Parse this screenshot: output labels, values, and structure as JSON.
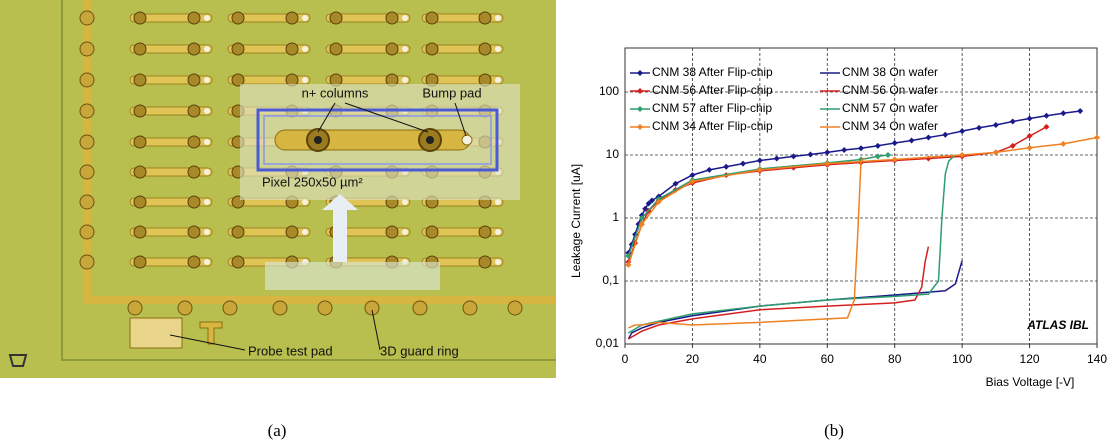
{
  "panel_a": {
    "labels": {
      "n_columns": "n+ columns",
      "bump_pad": "Bump pad",
      "pixel": "Pixel 250x50 µm²",
      "probe": "Probe test pad",
      "guard": "3D guard ring"
    }
  },
  "captions": [
    "(a)",
    "(b)"
  ],
  "chart_data": {
    "type": "line",
    "x_label": "Bias Voltage [-V]",
    "y_label": "Leakage Current [uA]",
    "annotation": "ATLAS IBL",
    "xlim": [
      0,
      140
    ],
    "xticks": [
      0,
      20,
      40,
      60,
      80,
      100,
      120,
      140
    ],
    "ylim": [
      0.01,
      500
    ],
    "y_log": true,
    "grid": true,
    "yticks": [
      {
        "value": 0.01,
        "label": "0,01"
      },
      {
        "value": 0.1,
        "label": "0,1"
      },
      1,
      10,
      100
    ],
    "series": [
      {
        "name": "CNM 38 After Flip-chip",
        "color": "#1a1a8c",
        "marker": true,
        "x": [
          1,
          2,
          3,
          4,
          5,
          6,
          7,
          8,
          10,
          15,
          20,
          25,
          30,
          35,
          40,
          45,
          50,
          55,
          60,
          65,
          70,
          75,
          80,
          85,
          90,
          95,
          100,
          105,
          110,
          115,
          120,
          125,
          130,
          135
        ],
        "values": [
          0.28,
          0.38,
          0.55,
          0.8,
          1.1,
          1.4,
          1.7,
          1.9,
          2.2,
          3.5,
          4.8,
          5.8,
          6.5,
          7.3,
          8.2,
          8.8,
          9.5,
          10.2,
          11,
          12,
          12.8,
          14,
          15.5,
          17,
          19,
          21,
          24,
          27,
          30,
          34,
          38,
          42,
          46,
          50
        ]
      },
      {
        "name": "CNM 38 On wafer",
        "color": "#1a1a8c",
        "marker": false,
        "x": [
          1,
          2,
          5,
          10,
          20,
          40,
          60,
          80,
          95,
          98,
          100
        ],
        "values": [
          0.012,
          0.015,
          0.018,
          0.022,
          0.028,
          0.04,
          0.05,
          0.06,
          0.07,
          0.09,
          0.21
        ]
      },
      {
        "name": "CNM 56 After Flip-chip",
        "color": "#d62020",
        "marker": true,
        "x": [
          1,
          3,
          5,
          7,
          10,
          15,
          20,
          30,
          40,
          50,
          60,
          70,
          80,
          90,
          100,
          110,
          115,
          120,
          125
        ],
        "values": [
          0.2,
          0.4,
          0.8,
          1.3,
          1.9,
          2.8,
          3.6,
          4.8,
          5.6,
          6.3,
          7,
          7.6,
          8.2,
          8.8,
          9.5,
          11,
          14,
          20,
          28
        ]
      },
      {
        "name": "CNM 56 On wafer",
        "color": "#d62020",
        "marker": false,
        "x": [
          1,
          5,
          10,
          20,
          40,
          60,
          80,
          86,
          88,
          89,
          90
        ],
        "values": [
          0.012,
          0.016,
          0.02,
          0.025,
          0.035,
          0.04,
          0.045,
          0.05,
          0.08,
          0.2,
          0.35
        ]
      },
      {
        "name": "CNM 57 after Flip-chip",
        "color": "#2e9e6e",
        "marker": true,
        "x": [
          1,
          5,
          10,
          20,
          40,
          60,
          70,
          75,
          78
        ],
        "values": [
          0.25,
          1.0,
          2.0,
          4,
          6,
          7.5,
          8.5,
          9.5,
          10
        ]
      },
      {
        "name": "CNM 57 On wafer",
        "color": "#2e9e6e",
        "marker": false,
        "x": [
          1,
          5,
          10,
          20,
          40,
          60,
          80,
          90,
          93,
          94,
          95,
          96,
          97,
          98
        ],
        "values": [
          0.015,
          0.02,
          0.023,
          0.03,
          0.04,
          0.05,
          0.057,
          0.062,
          0.1,
          1,
          5,
          8,
          9,
          10
        ]
      },
      {
        "name": "CNM 34 After Flip-chip",
        "color": "#f08020",
        "marker": true,
        "x": [
          1,
          5,
          10,
          20,
          40,
          60,
          80,
          100,
          110,
          120,
          130,
          140
        ],
        "values": [
          0.18,
          0.8,
          1.8,
          3.8,
          5.8,
          7.3,
          8.5,
          10,
          11,
          13,
          15,
          19
        ]
      },
      {
        "name": "CNM 34 On wafer",
        "color": "#f08020",
        "marker": false,
        "x": [
          1,
          3,
          5,
          10,
          20,
          40,
          60,
          66,
          68,
          69,
          70,
          71
        ],
        "values": [
          0.018,
          0.02,
          0.02,
          0.022,
          0.02,
          0.022,
          0.025,
          0.026,
          0.05,
          0.5,
          8,
          9
        ]
      }
    ]
  }
}
